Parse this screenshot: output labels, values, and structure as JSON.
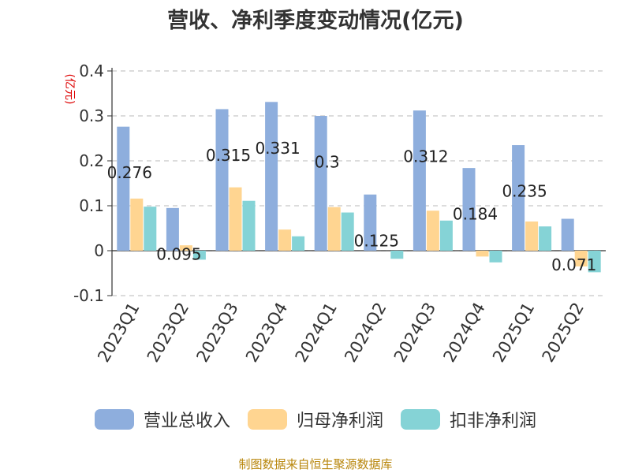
{
  "chart_data": {
    "type": "bar",
    "title": "营收、净利季度变动情况(亿元)",
    "unit_label": "(亿元)",
    "categories": [
      "2023Q1",
      "2023Q2",
      "2023Q3",
      "2023Q4",
      "2024Q1",
      "2024Q2",
      "2024Q3",
      "2024Q4",
      "2025Q1",
      "2025Q2"
    ],
    "series": [
      {
        "name": "营业总收入",
        "color": "#8eaedd",
        "values": [
          0.276,
          0.095,
          0.315,
          0.331,
          0.3,
          0.125,
          0.312,
          0.184,
          0.235,
          0.071
        ]
      },
      {
        "name": "归母净利润",
        "color": "#ffd591",
        "values": [
          0.116,
          0.012,
          0.141,
          0.047,
          0.097,
          0.0,
          0.089,
          -0.013,
          0.065,
          -0.035
        ]
      },
      {
        "name": "扣非净利润",
        "color": "#85d3d6",
        "values": [
          0.098,
          -0.02,
          0.111,
          0.032,
          0.085,
          -0.018,
          0.067,
          -0.026,
          0.054,
          -0.048
        ]
      }
    ],
    "data_labels": [
      "0.276",
      "0.095",
      "0.315",
      "0.331",
      "0.3",
      "0.125",
      "0.312",
      "0.184",
      "0.235",
      "0.071"
    ],
    "yticks": [
      "0.4",
      "0.3",
      "0.2",
      "0.1",
      "0",
      "-0.1"
    ],
    "ylim": [
      -0.1,
      0.4
    ],
    "grid": true,
    "legend_position": "bottom"
  },
  "source_text": "制图数据来自恒生聚源数据库"
}
